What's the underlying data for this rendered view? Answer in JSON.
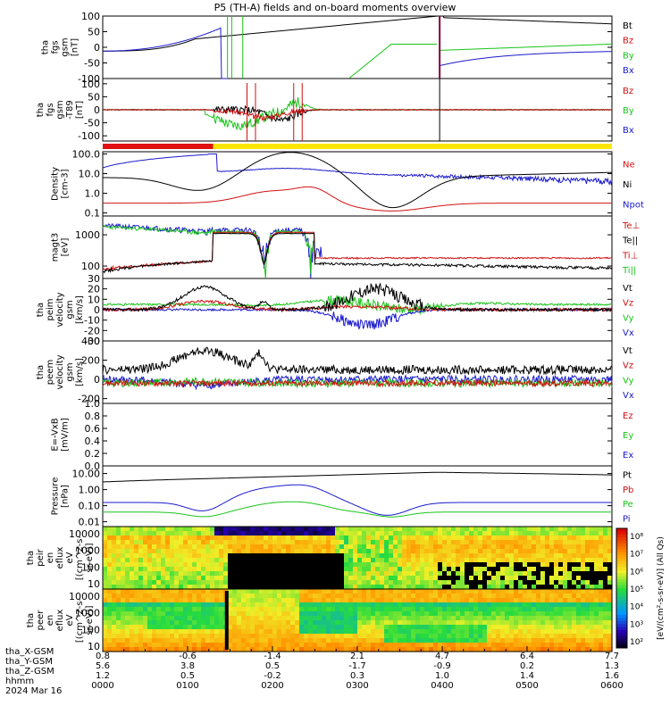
{
  "title": "P5 (TH-A) fields and on-board moments overview",
  "colors": {
    "black": "#000000",
    "red": "#d01010",
    "green": "#19c419",
    "blue": "#1a1acc",
    "yellow": "#ffe600"
  },
  "time_axis": {
    "ticks": [
      "0000",
      "0100",
      "0200",
      "0300",
      "0400",
      "0500",
      "0600"
    ]
  },
  "ephemeris": {
    "labels": [
      "tha_X-GSM",
      "tha_Y-GSM",
      "tha_Z-GSM",
      "hhmm",
      "2024 Mar 16"
    ],
    "x_gsm": [
      "0.8",
      "-0.6",
      "-1.4",
      "2.1",
      "4.7",
      "6.4",
      "7.7"
    ],
    "y_gsm": [
      "5.6",
      "3.8",
      "0.5",
      "-1.7",
      "-0.9",
      "0.2",
      "1.3"
    ],
    "z_gsm": [
      "1.2",
      "0.5",
      "-0.2",
      "0.3",
      "1.0",
      "1.4",
      "1.6"
    ]
  },
  "chart_data": [
    {
      "type": "line",
      "panel": "fgs",
      "ylabel": [
        "tha",
        "fgs",
        "gsm",
        "[nT]"
      ],
      "ylim": [
        -100,
        100
      ],
      "yticks": [
        "100",
        "50",
        "0",
        "-50",
        "-100"
      ],
      "legend": [
        {
          "text": "Bt",
          "color": "black"
        },
        {
          "text": "Bz",
          "color": "red"
        },
        {
          "text": "By",
          "color": "green"
        },
        {
          "text": "Bx",
          "color": "blue"
        }
      ]
    },
    {
      "type": "line",
      "panel": "fgs_hp",
      "ylabel": [
        "tha",
        "fgs",
        "gsm",
        "-T89",
        "[nT]"
      ],
      "ylim": [
        -120,
        120
      ],
      "yticks": [
        "100",
        "50",
        "0",
        "-50",
        "-100"
      ],
      "legend": [
        {
          "text": "Bz",
          "color": "red"
        },
        {
          "text": "By",
          "color": "green"
        },
        {
          "text": "Bx",
          "color": "blue"
        }
      ]
    },
    {
      "type": "line",
      "panel": "density",
      "ylabel": [
        "Density",
        "[cm-3]"
      ],
      "log": true,
      "ylim": [
        0.07,
        130
      ],
      "yticks": [
        "100.0",
        "10.0",
        "1.0",
        "0.1"
      ],
      "legend": [
        {
          "text": "Ne",
          "color": "red"
        },
        {
          "text": "Ni",
          "color": "black"
        },
        {
          "text": "Npot",
          "color": "blue"
        }
      ]
    },
    {
      "type": "line",
      "panel": "temperature",
      "ylabel": [
        "magt3",
        "[eV]"
      ],
      "log": true,
      "ylim": [
        40,
        4000
      ],
      "yticks": [
        "1000",
        "100"
      ],
      "legend": [
        {
          "text": "Te⊥",
          "color": "red"
        },
        {
          "text": "Te||",
          "color": "black"
        },
        {
          "text": "Ti⊥",
          "color": "red"
        },
        {
          "text": "Ti||",
          "color": "green"
        }
      ]
    },
    {
      "type": "line",
      "panel": "peim_velocity",
      "ylabel": [
        "tha",
        "peim",
        "velocity",
        "gsm",
        "[km/s]"
      ],
      "ylim": [
        -30,
        30
      ],
      "yticks": [
        "30",
        "20",
        "10",
        "0",
        "-10",
        "-20",
        "-30"
      ],
      "legend": [
        {
          "text": "Vt",
          "color": "black"
        },
        {
          "text": "Vz",
          "color": "red"
        },
        {
          "text": "Vy",
          "color": "green"
        },
        {
          "text": "Vx",
          "color": "blue"
        }
      ]
    },
    {
      "type": "line",
      "panel": "peem_velocity",
      "ylabel": [
        "tha",
        "peem",
        "velocity",
        "gsm",
        "[km/s]"
      ],
      "ylim": [
        -250,
        400
      ],
      "yticks": [
        "400",
        "200",
        "0",
        "-200"
      ],
      "legend": [
        {
          "text": "Vt",
          "color": "black"
        },
        {
          "text": "Vz",
          "color": "red"
        },
        {
          "text": "Vy",
          "color": "green"
        },
        {
          "text": "Vx",
          "color": "blue"
        }
      ]
    },
    {
      "type": "line",
      "panel": "efield",
      "ylabel": [
        "E=-VxB",
        "[mV/m]"
      ],
      "ylim": [
        0,
        1
      ],
      "yticks": [
        "1.0",
        "0.8",
        "0.6",
        "0.4",
        "0.2",
        "0.0"
      ],
      "legend": [
        {
          "text": "Ez",
          "color": "red"
        },
        {
          "text": "Ey",
          "color": "green"
        },
        {
          "text": "Ex",
          "color": "blue"
        }
      ]
    },
    {
      "type": "line",
      "panel": "pressure",
      "ylabel": [
        "Pressure",
        "[nPa]"
      ],
      "log": true,
      "ylim": [
        0.005,
        30
      ],
      "yticks": [
        "10.00",
        "1.00",
        "0.10",
        "0.01"
      ],
      "legend": [
        {
          "text": "Pt",
          "color": "black"
        },
        {
          "text": "Pb",
          "color": "red"
        },
        {
          "text": "Pe",
          "color": "green"
        },
        {
          "text": "Pi",
          "color": "blue"
        }
      ]
    },
    {
      "type": "heatmap",
      "panel": "peir",
      "ylabel": [
        "tha",
        "peir",
        "en",
        "eflux",
        "eV",
        "[(cm^2-s-",
        "sr-eV)]"
      ],
      "yticks": [
        "10000",
        "1000",
        "100",
        "10"
      ]
    },
    {
      "type": "heatmap",
      "panel": "peer",
      "ylabel": [
        "tha",
        "peer",
        "en",
        "eflux",
        "eV",
        "[(cm^2-s-",
        "sr-eV)]"
      ],
      "yticks": [
        "10000",
        "1000",
        "100",
        "10"
      ]
    }
  ],
  "colorbar": {
    "ticks": [
      "10⁸",
      "10⁷",
      "10⁶",
      "10⁵",
      "10⁴",
      "10³",
      "10²"
    ],
    "label": "[eV/(cm²-s-sr-eV)] (All Qs)"
  }
}
